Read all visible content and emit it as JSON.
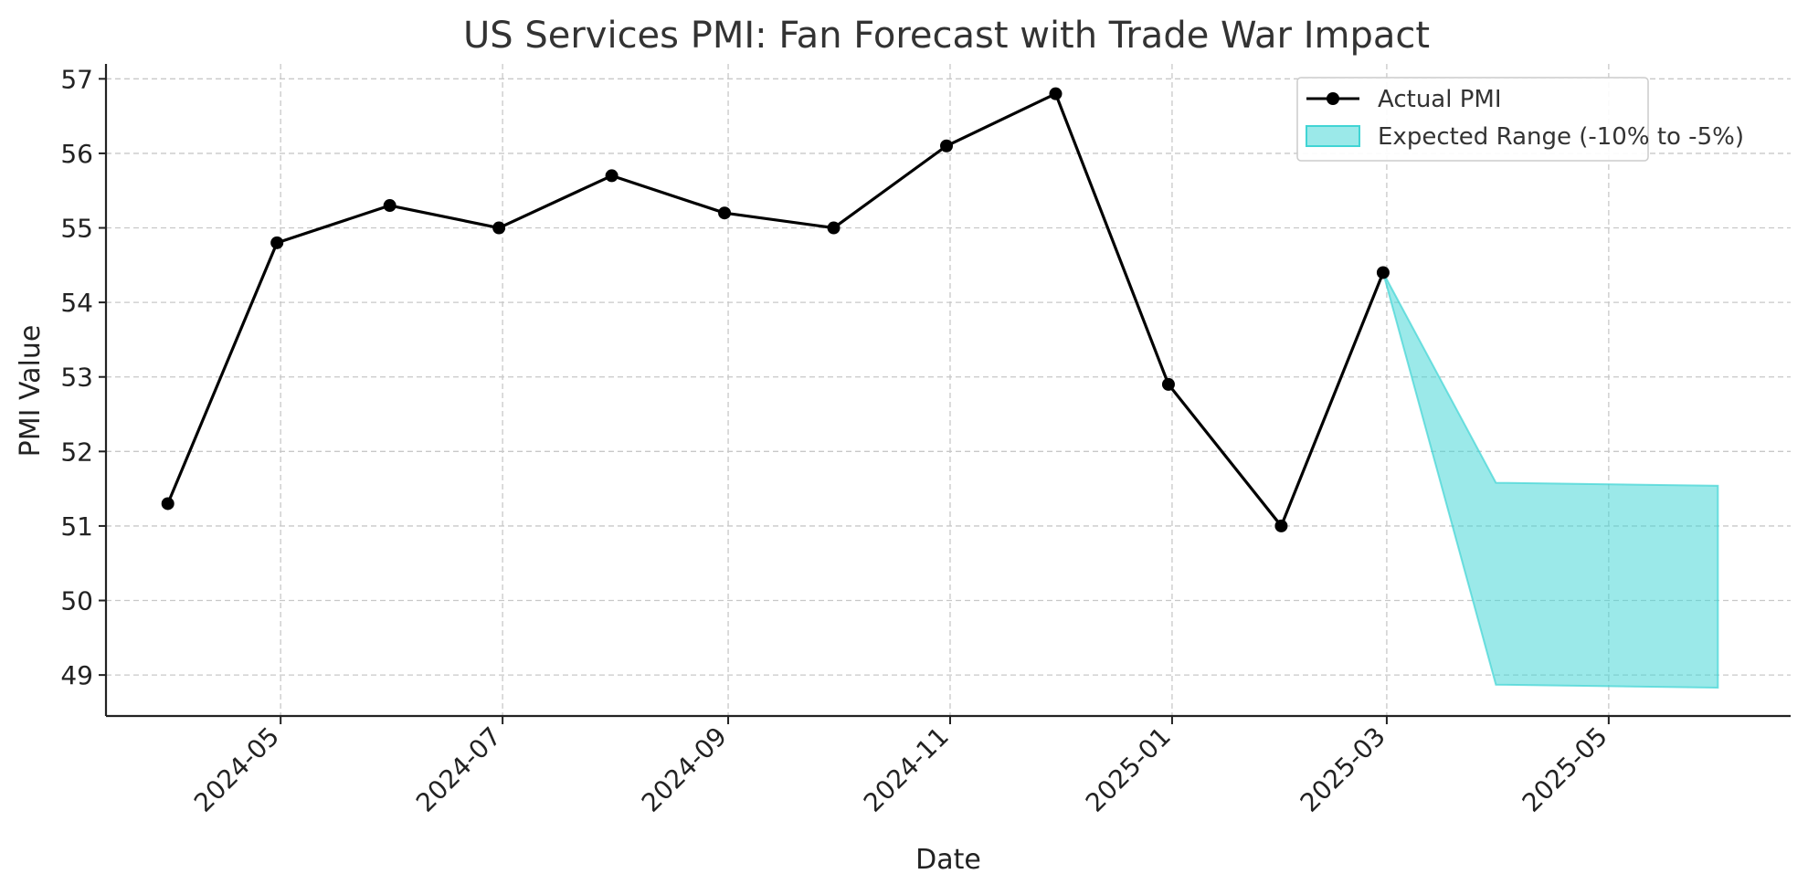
{
  "chart_data": {
    "type": "line",
    "title": "US Services PMI: Fan Forecast with Trade War Impact",
    "xlabel": "Date",
    "ylabel": "PMI Value",
    "ylim": [
      48.45,
      57.2
    ],
    "xlim": [
      "2024-03-14",
      "2025-06-20"
    ],
    "grid": true,
    "legend_position": "top-right",
    "y_ticks": [
      49,
      50,
      51,
      52,
      53,
      54,
      55,
      56,
      57
    ],
    "x_ticks": [
      "2024-05",
      "2024-07",
      "2024-09",
      "2024-11",
      "2025-01",
      "2025-03",
      "2025-05"
    ],
    "series": [
      {
        "name": "Actual PMI",
        "color": "#000000",
        "marker": "circle",
        "points": [
          {
            "x": "2024-03-31",
            "y": 51.3
          },
          {
            "x": "2024-04-30",
            "y": 54.8
          },
          {
            "x": "2024-05-31",
            "y": 55.3
          },
          {
            "x": "2024-06-30",
            "y": 55.0
          },
          {
            "x": "2024-07-31",
            "y": 55.7
          },
          {
            "x": "2024-08-31",
            "y": 55.2
          },
          {
            "x": "2024-09-30",
            "y": 55.0
          },
          {
            "x": "2024-10-31",
            "y": 56.1
          },
          {
            "x": "2024-11-30",
            "y": 56.8
          },
          {
            "x": "2024-12-31",
            "y": 52.9
          },
          {
            "x": "2025-01-31",
            "y": 51.0
          },
          {
            "x": "2025-02-28",
            "y": 54.4
          }
        ]
      }
    ],
    "band": {
      "name": "Expected Range (-10% to -5%)",
      "color": "#40d4d4",
      "points": [
        {
          "x": "2025-02-28",
          "lower": 54.4,
          "upper": 54.4
        },
        {
          "x": "2025-03-31",
          "lower": 48.87,
          "upper": 51.58
        },
        {
          "x": "2025-05-31",
          "lower": 48.83,
          "upper": 51.54
        }
      ]
    }
  }
}
